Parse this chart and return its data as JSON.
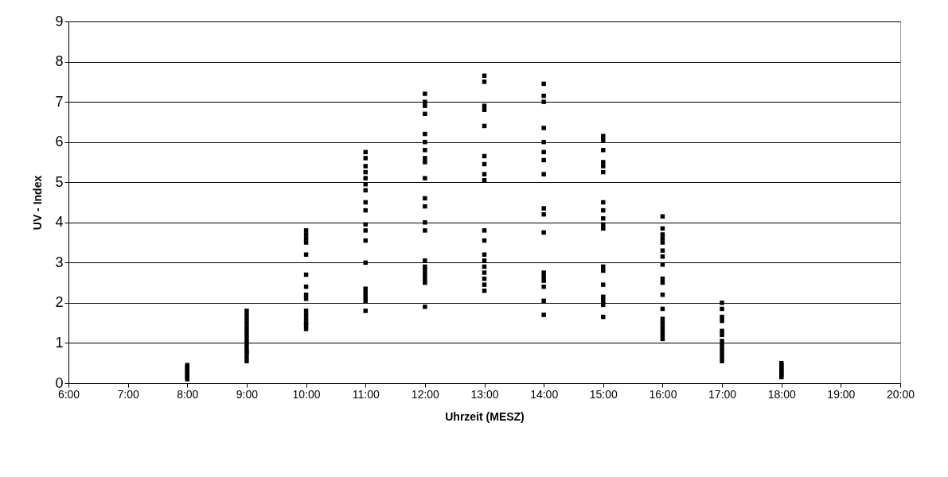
{
  "chart_data": {
    "type": "scatter",
    "xlabel": "Uhrzeit (MESZ)",
    "ylabel": "UV - Index",
    "x": [
      8,
      8,
      8,
      8,
      8,
      8,
      8,
      8,
      9,
      9,
      9,
      9,
      9,
      9,
      9,
      9,
      9,
      9,
      9,
      9,
      9,
      9,
      10,
      10,
      10,
      10,
      10,
      10,
      10,
      10,
      10,
      10,
      10,
      10,
      10,
      10,
      10,
      11,
      11,
      11,
      11,
      11,
      11,
      11,
      11,
      11,
      11,
      11,
      11,
      11,
      11,
      11,
      11,
      11,
      11,
      12,
      12,
      12,
      12,
      12,
      12,
      12,
      12,
      12,
      12,
      12,
      12,
      12,
      12,
      12,
      12,
      12,
      12,
      12,
      12,
      12,
      13,
      13,
      13,
      13,
      13,
      13,
      13,
      13,
      13,
      13,
      13,
      13,
      13,
      13,
      13,
      13,
      13,
      13,
      14,
      14,
      14,
      14,
      14,
      14,
      14,
      14,
      14,
      14,
      14,
      14,
      14,
      14,
      14,
      14,
      14,
      15,
      15,
      15,
      15,
      15,
      15,
      15,
      15,
      15,
      15,
      15,
      15,
      15,
      15,
      15,
      15,
      15,
      15,
      16,
      16,
      16,
      16,
      16,
      16,
      16,
      16,
      16,
      16,
      16,
      16,
      16,
      16,
      16,
      16,
      16,
      16,
      17,
      17,
      17,
      17,
      17,
      17,
      17,
      17,
      17,
      17,
      17,
      17,
      18,
      18,
      18,
      18,
      18,
      18,
      18,
      18
    ],
    "values": [
      0.1,
      0.15,
      0.2,
      0.25,
      0.3,
      0.35,
      0.4,
      0.45,
      0.55,
      0.65,
      0.75,
      0.8,
      0.9,
      1.0,
      1.1,
      1.2,
      1.3,
      1.4,
      1.5,
      1.6,
      1.7,
      1.8,
      1.35,
      1.45,
      1.5,
      1.6,
      1.7,
      1.8,
      2.1,
      2.2,
      2.4,
      2.7,
      3.2,
      3.5,
      3.6,
      3.7,
      3.8,
      1.8,
      2.05,
      2.15,
      2.25,
      2.35,
      3.0,
      3.55,
      3.8,
      3.95,
      4.3,
      4.5,
      4.8,
      4.95,
      5.1,
      5.25,
      5.4,
      5.6,
      5.75,
      1.9,
      2.5,
      2.6,
      2.7,
      2.8,
      2.9,
      3.05,
      3.8,
      4.0,
      4.4,
      4.6,
      5.1,
      5.5,
      5.6,
      5.8,
      6.0,
      6.2,
      6.7,
      6.9,
      7.0,
      7.2,
      2.3,
      2.45,
      2.6,
      2.75,
      2.9,
      3.05,
      3.2,
      3.55,
      3.8,
      5.05,
      5.2,
      5.45,
      5.65,
      6.4,
      6.8,
      6.9,
      7.5,
      7.65,
      1.7,
      2.05,
      2.4,
      2.55,
      2.65,
      2.75,
      3.75,
      4.2,
      4.35,
      5.2,
      5.55,
      5.75,
      6.0,
      6.35,
      7.0,
      7.15,
      7.45,
      1.65,
      1.95,
      2.05,
      2.15,
      2.45,
      2.8,
      2.9,
      3.85,
      3.95,
      4.1,
      4.3,
      4.5,
      5.25,
      5.4,
      5.5,
      5.8,
      6.05,
      6.15,
      1.1,
      1.2,
      1.3,
      1.4,
      1.5,
      1.6,
      1.85,
      2.2,
      2.5,
      2.6,
      2.95,
      3.15,
      3.3,
      3.5,
      3.6,
      3.7,
      3.85,
      4.15,
      0.55,
      0.65,
      0.75,
      0.85,
      0.95,
      1.05,
      1.2,
      1.3,
      1.55,
      1.65,
      1.85,
      2.0,
      0.15,
      0.2,
      0.25,
      0.3,
      0.35,
      0.4,
      0.45,
      0.5
    ],
    "color": "#000000",
    "marker": "square",
    "grid": "y",
    "xlim": [
      6,
      20
    ],
    "xticks": [
      {
        "value": 6,
        "label": "6:00"
      },
      {
        "value": 7,
        "label": "7:00"
      },
      {
        "value": 8,
        "label": "8:00"
      },
      {
        "value": 9,
        "label": "9:00"
      },
      {
        "value": 10,
        "label": "10:00"
      },
      {
        "value": 11,
        "label": "11:00"
      },
      {
        "value": 12,
        "label": "12:00"
      },
      {
        "value": 13,
        "label": "13:00"
      },
      {
        "value": 14,
        "label": "14:00"
      },
      {
        "value": 15,
        "label": "15:00"
      },
      {
        "value": 16,
        "label": "16:00"
      },
      {
        "value": 17,
        "label": "17:00"
      },
      {
        "value": 18,
        "label": "18:00"
      },
      {
        "value": 19,
        "label": "19:00"
      },
      {
        "value": 20,
        "label": "20:00"
      }
    ],
    "ylim": [
      0,
      9
    ],
    "yticks": [
      0,
      1,
      2,
      3,
      4,
      5,
      6,
      7,
      8,
      9
    ]
  }
}
